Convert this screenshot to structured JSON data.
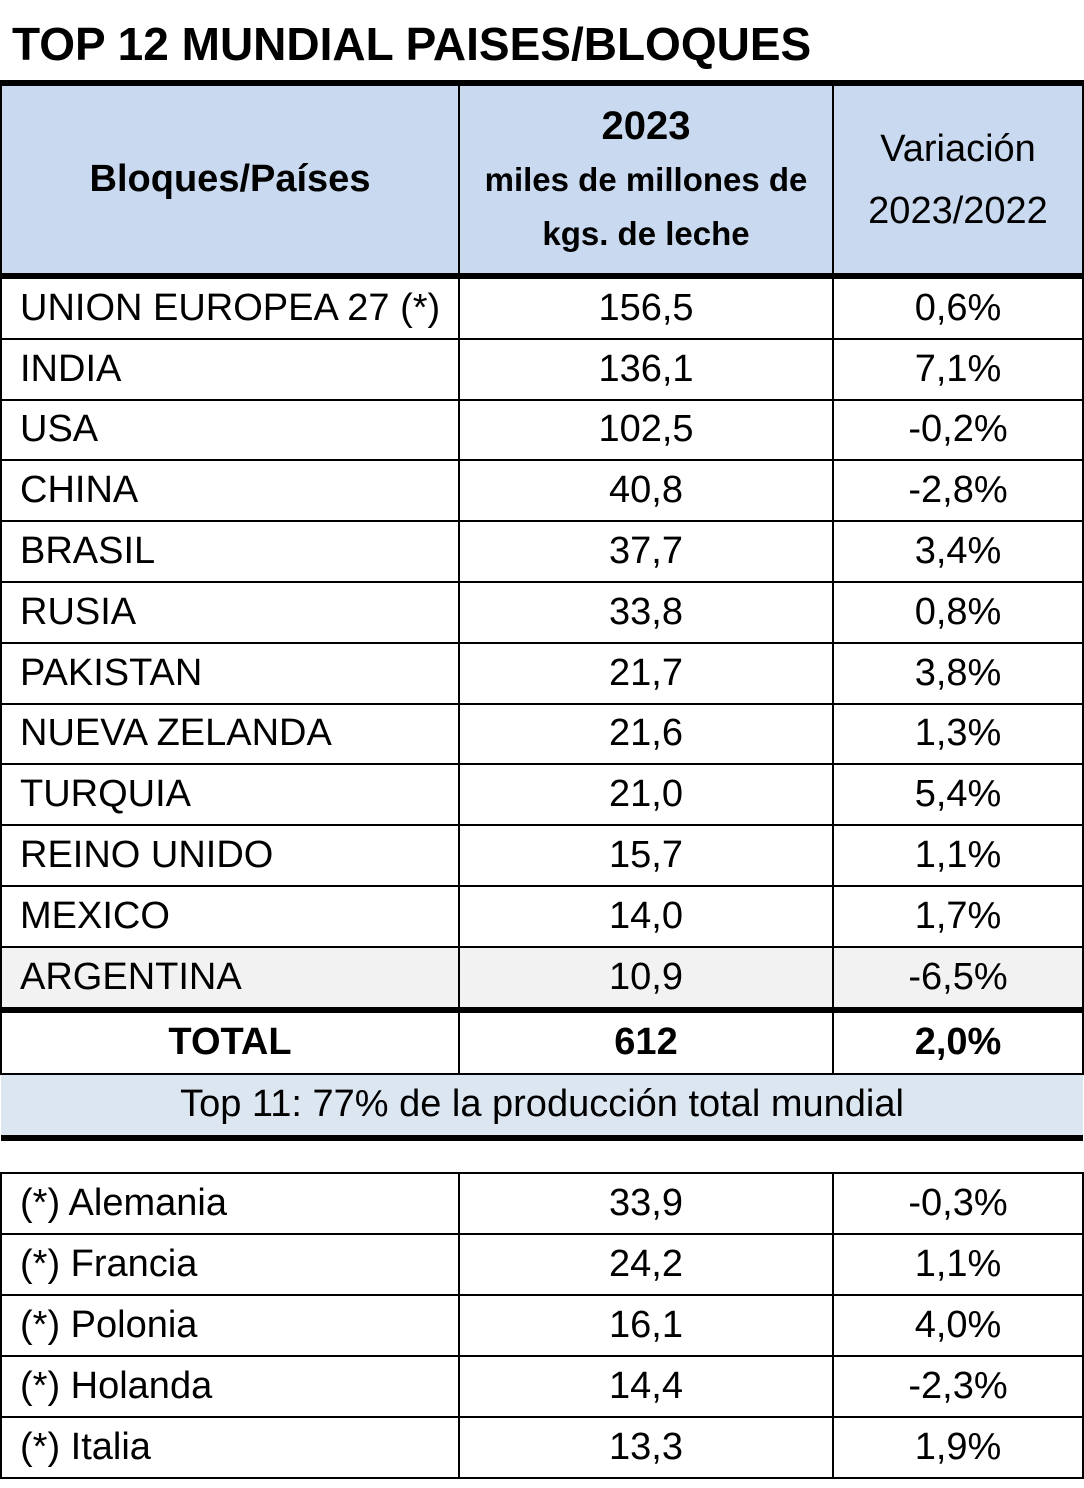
{
  "title": "TOP 12 MUNDIAL PAISES/BLOQUES",
  "header": {
    "col1": "Bloques/Países",
    "col2_year": "2023",
    "col2_unit_line1": "miles de millones de",
    "col2_unit_line2": "kgs. de leche",
    "col3_line1": "Variación",
    "col3_line2": "2023/2022"
  },
  "rows": [
    {
      "name": "UNION EUROPEA 27 (*)",
      "value": "156,5",
      "variation": "0,6%"
    },
    {
      "name": "INDIA",
      "value": "136,1",
      "variation": "7,1%"
    },
    {
      "name": "USA",
      "value": "102,5",
      "variation": "-0,2%"
    },
    {
      "name": "CHINA",
      "value": "40,8",
      "variation": "-2,8%"
    },
    {
      "name": "BRASIL",
      "value": "37,7",
      "variation": "3,4%"
    },
    {
      "name": "RUSIA",
      "value": "33,8",
      "variation": "0,8%"
    },
    {
      "name": "PAKISTAN",
      "value": "21,7",
      "variation": "3,8%"
    },
    {
      "name": "NUEVA ZELANDA",
      "value": "21,6",
      "variation": "1,3%"
    },
    {
      "name": "TURQUIA",
      "value": "21,0",
      "variation": "5,4%"
    },
    {
      "name": "REINO UNIDO",
      "value": "15,7",
      "variation": "1,1%"
    },
    {
      "name": "MEXICO",
      "value": "14,0",
      "variation": "1,7%"
    },
    {
      "name": "ARGENTINA",
      "value": "10,9",
      "variation": "-6,5%"
    }
  ],
  "total": {
    "label": "TOTAL",
    "value": "612",
    "variation": "2,0%"
  },
  "note": "Top 11: 77% de la producción total mundial",
  "eu_rows": [
    {
      "name": "(*) Alemania",
      "value": "33,9",
      "variation": "-0,3%"
    },
    {
      "name": "(*) Francia",
      "value": "24,2",
      "variation": "1,1%"
    },
    {
      "name": "(*) Polonia",
      "value": "16,1",
      "variation": "4,0%"
    },
    {
      "name": "(*) Holanda",
      "value": "14,4",
      "variation": "-2,3%"
    },
    {
      "name": "(*) Italia",
      "value": "13,3",
      "variation": "1,9%"
    }
  ],
  "colors": {
    "header_bg": "#c9d9ef",
    "note_bg": "#dce6f1",
    "highlight_row_bg": "#f2f2f2"
  }
}
